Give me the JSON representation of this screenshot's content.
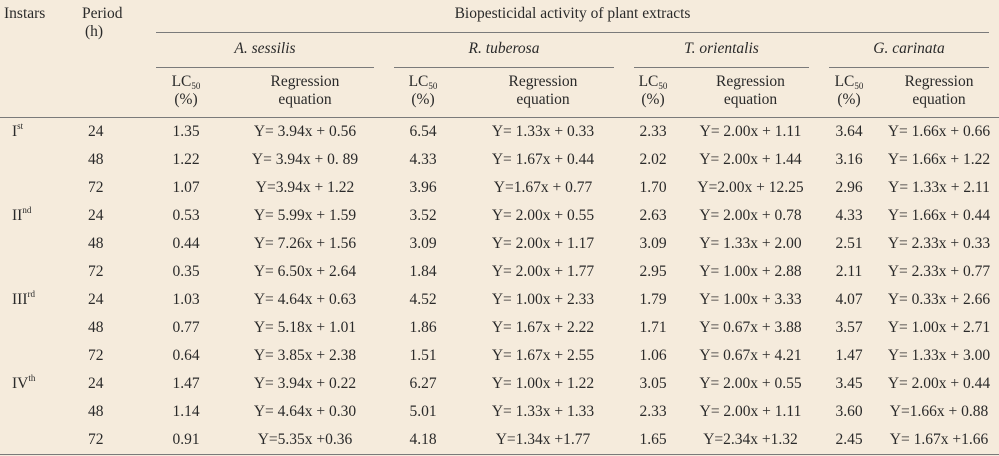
{
  "header": {
    "instars": "Instars",
    "period_line1": "Period",
    "period_line2": "(h)",
    "group_title": "Biopesticidal activity of plant extracts",
    "species": [
      "A. sessilis",
      "R. tuberosa",
      "T. orientalis",
      "G. carinata"
    ],
    "lc_main": "LC",
    "lc_sub": "50",
    "lc_unit": "(%)",
    "reg_line1": "Regression",
    "reg_line2": "equation"
  },
  "rows": [
    {
      "instar": "I",
      "sup": "st",
      "period": "24",
      "c": [
        "1.35",
        "Y= 3.94x + 0.56",
        "6.54",
        "Y= 1.33x + 0.33",
        "2.33",
        "Y= 2.00x + 1.11",
        "3.64",
        "Y= 1.66x + 0.66"
      ]
    },
    {
      "instar": "",
      "sup": "",
      "period": "48",
      "c": [
        "1.22",
        "Y= 3.94x + 0. 89",
        "4.33",
        "Y= 1.67x + 0.44",
        "2.02",
        "Y= 2.00x + 1.44",
        "3.16",
        "Y= 1.66x + 1.22"
      ]
    },
    {
      "instar": "",
      "sup": "",
      "period": "72",
      "c": [
        "1.07",
        "Y=3.94x + 1.22",
        "3.96",
        "Y=1.67x + 0.77",
        "1.70",
        "Y=2.00x + 12.25",
        "2.96",
        "Y= 1.33x + 2.11"
      ]
    },
    {
      "instar": "II",
      "sup": "nd",
      "period": "24",
      "c": [
        "0.53",
        "Y= 5.99x + 1.59",
        "3.52",
        "Y= 2.00x + 0.55",
        "2.63",
        "Y= 2.00x + 0.78",
        "4.33",
        "Y= 1.66x + 0.44"
      ]
    },
    {
      "instar": "",
      "sup": "",
      "period": "48",
      "c": [
        "0.44",
        "Y= 7.26x + 1.56",
        "3.09",
        "Y= 2.00x + 1.17",
        "3.09",
        "Y= 1.33x + 2.00",
        "2.51",
        "Y= 2.33x + 0.33"
      ]
    },
    {
      "instar": "",
      "sup": "",
      "period": "72",
      "c": [
        "0.35",
        "Y= 6.50x + 2.64",
        "1.84",
        "Y= 2.00x + 1.77",
        "2.95",
        "Y= 1.00x + 2.88",
        "2.11",
        "Y= 2.33x + 0.77"
      ]
    },
    {
      "instar": "III",
      "sup": "rd",
      "period": "24",
      "c": [
        "1.03",
        "Y= 4.64x + 0.63",
        "4.52",
        "Y= 1.00x + 2.33",
        "1.79",
        "Y= 1.00x + 3.33",
        "4.07",
        "Y= 0.33x + 2.66"
      ]
    },
    {
      "instar": "",
      "sup": "",
      "period": "48",
      "c": [
        "0.77",
        "Y= 5.18x + 1.01",
        "1.86",
        "Y= 1.67x + 2.22",
        "1.71",
        "Y= 0.67x + 3.88",
        "3.57",
        "Y= 1.00x + 2.71"
      ]
    },
    {
      "instar": "",
      "sup": "",
      "period": "72",
      "c": [
        "0.64",
        "Y= 3.85x + 2.38",
        "1.51",
        "Y= 1.67x + 2.55",
        "1.06",
        "Y= 0.67x + 4.21",
        "1.47",
        "Y= 1.33x + 3.00"
      ]
    },
    {
      "instar": "IV",
      "sup": "th",
      "period": "24",
      "c": [
        "1.47",
        "Y= 3.94x + 0.22",
        "6.27",
        "Y= 1.00x + 1.22",
        "3.05",
        "Y= 2.00x + 0.55",
        "3.45",
        "Y= 2.00x + 0.44"
      ]
    },
    {
      "instar": "",
      "sup": "",
      "period": "48",
      "c": [
        "1.14",
        "Y= 4.64x + 0.30",
        "5.01",
        "Y= 1.33x + 1.33",
        "2.33",
        "Y= 2.00x + 1.11",
        "3.60",
        "Y=1.66x + 0.88"
      ]
    },
    {
      "instar": "",
      "sup": "",
      "period": "72",
      "c": [
        "0.91",
        "Y=5.35x +0.36",
        "4.18",
        "Y=1.34x +1.77",
        "1.65",
        "Y=2.34x +1.32",
        "2.45",
        "Y= 1.67x +1.66"
      ]
    }
  ]
}
